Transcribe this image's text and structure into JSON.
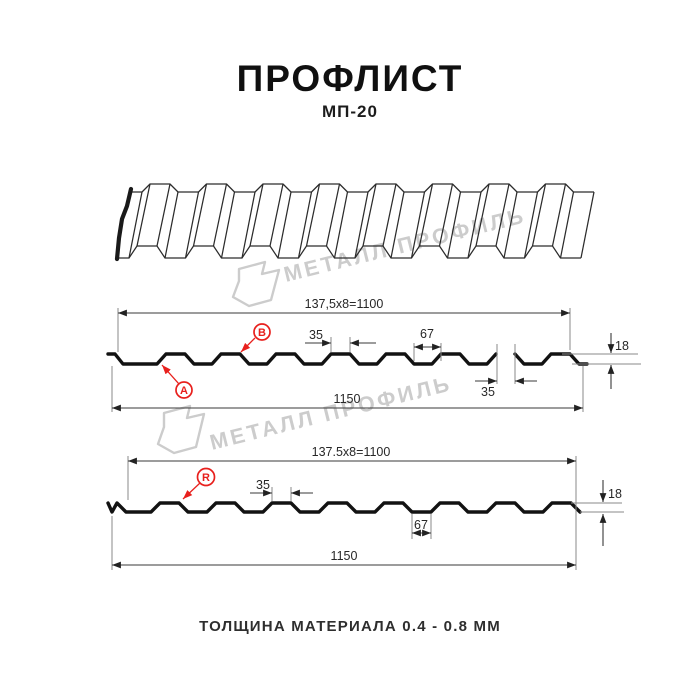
{
  "header": {
    "title": "ПРОФЛИСТ",
    "subtitle": "МП-20"
  },
  "footer": {
    "text": "ТОЛЩИНА МАТЕРИАЛА 0.4 - 0.8 ММ"
  },
  "watermark": {
    "text": "МЕТАЛЛ ПРОФИЛЬ"
  },
  "colors": {
    "line_black": "#121212",
    "dimension_dark": "#3a3a3a",
    "extension_gray": "#8a8a8a",
    "accent_red": "#e8201d",
    "watermark_gray": "#cccccc",
    "background": "#ffffff"
  },
  "section_ab": {
    "point_a": "A",
    "point_b": "B",
    "dim_pitch": "137,5x8=1100",
    "dim_crest_top": "35",
    "dim_valley": "67",
    "dim_height": "18",
    "dim_overlap": "35",
    "dim_total": "1150"
  },
  "section_r": {
    "point_r": "R",
    "dim_pitch": "137.5x8=1100",
    "dim_crest_top": "35",
    "dim_valley": "67",
    "dim_height": "18",
    "dim_total": "1150"
  }
}
